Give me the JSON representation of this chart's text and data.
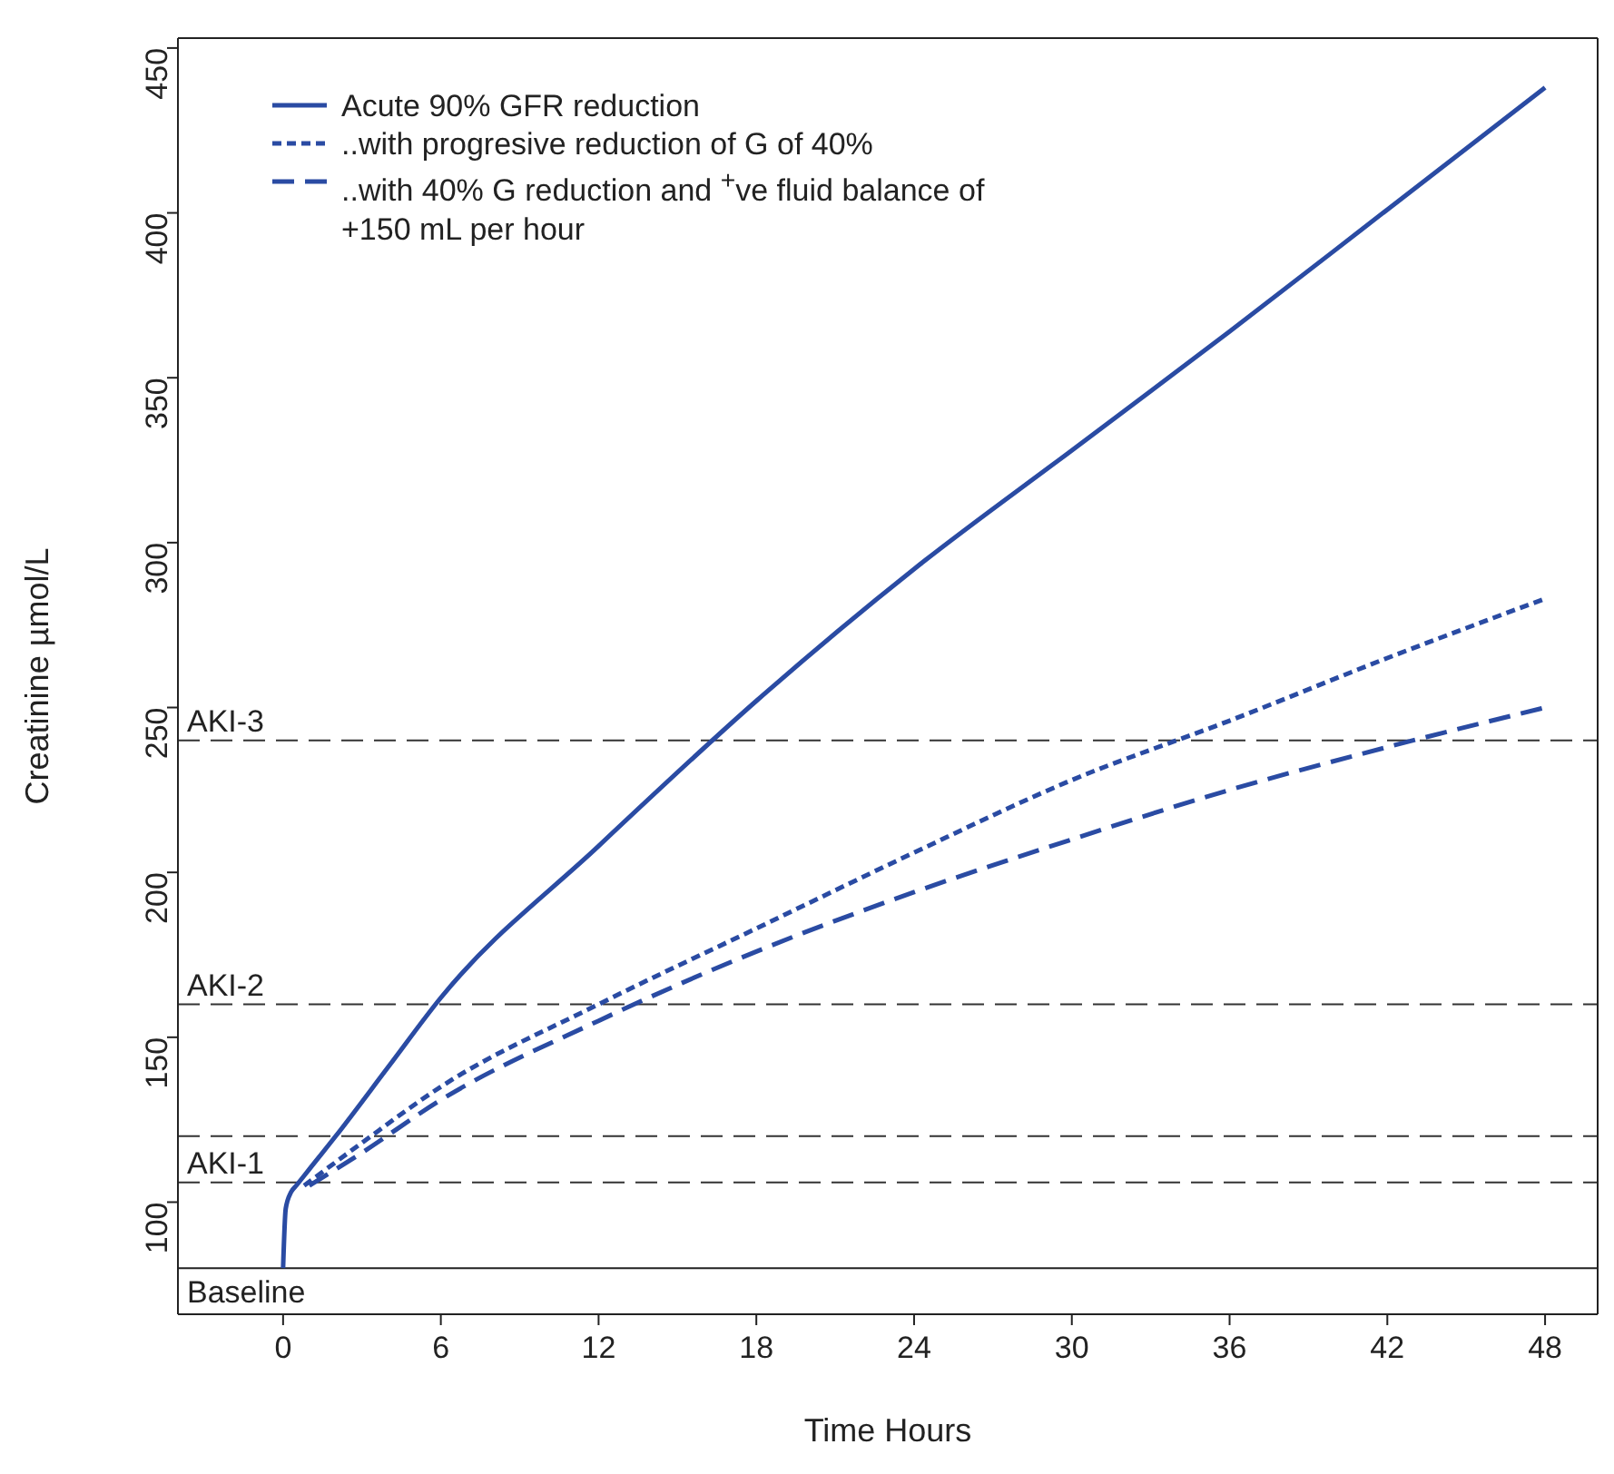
{
  "chart_data": {
    "type": "line",
    "xlabel": "Time Hours",
    "ylabel": "Creatinine µmol/L",
    "xlim": [
      -4,
      50
    ],
    "xticks": [
      0,
      6,
      12,
      18,
      24,
      30,
      36,
      42,
      48
    ],
    "ylim": [
      66,
      453
    ],
    "yticks": [
      100,
      150,
      200,
      250,
      300,
      350,
      400,
      450
    ],
    "legend": "top left",
    "marker": "none",
    "series": [
      {
        "name": "Acute 90% GFR reduction",
        "color": "#2a4ba3",
        "line_style": "solid",
        "x": [
          0,
          0.1,
          0.3,
          0.5,
          1,
          2,
          4,
          6,
          12,
          18,
          24,
          30,
          36,
          42,
          48
        ],
        "values": [
          80,
          98,
          103,
          105,
          110,
          120,
          141,
          162,
          208,
          252,
          292,
          328,
          364,
          401,
          438
        ]
      },
      {
        "name": "..with progresive reduction of G of 40%",
        "color": "#2a4ba3",
        "line_style": "dotted",
        "x": [
          0.8,
          3,
          6,
          12,
          18,
          24,
          30,
          36,
          42,
          48
        ],
        "values": [
          105,
          118,
          135,
          160,
          183,
          206,
          228,
          246,
          265,
          283
        ]
      },
      {
        "name": "..with 40% G reduction and $^{+}$ve fluid balance of +150 mL per hour",
        "color": "#2a4ba3",
        "line_style": "dashed",
        "x": [
          1,
          3,
          6,
          12,
          18,
          24,
          30,
          36,
          42,
          48
        ],
        "values": [
          105,
          115,
          131,
          155,
          176,
          194,
          210,
          225,
          238,
          250
        ]
      }
    ],
    "ref_lines": [
      {
        "axis": "y",
        "value": 240,
        "label": "AKI-3",
        "color": "#333333",
        "line_style": "dashed"
      },
      {
        "axis": "y",
        "value": 160,
        "label": "AKI-2",
        "color": "#333333",
        "line_style": "dashed"
      },
      {
        "axis": "y",
        "value": 120,
        "label": null,
        "color": "#333333",
        "line_style": "dashed"
      },
      {
        "axis": "y",
        "value": 106,
        "label": "AKI-1",
        "color": "#333333",
        "line_style": "dashed"
      },
      {
        "axis": "y",
        "value": 80,
        "label": "Baseline",
        "color": "#222222",
        "line_style": "solid"
      }
    ]
  }
}
